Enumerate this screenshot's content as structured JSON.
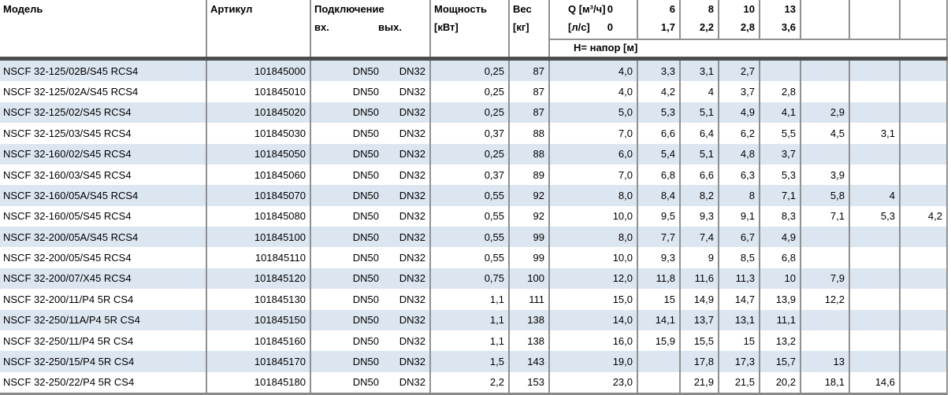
{
  "colors": {
    "shade": "#dce6f1",
    "grid": "#909090",
    "dark": "#4d4d4d",
    "bottom": "#8a8a8a"
  },
  "table": {
    "columns": {
      "model": "Модель",
      "article": "Артикул",
      "connection": "Подключение",
      "connection_in": "вх.",
      "connection_out": "вых.",
      "power_line1": "Мощность",
      "power_line2": "[кВт]",
      "weight_line1": "Вес",
      "weight_line2": "[кг]",
      "q_line1": "Q [м³/ч]",
      "q_line1_value": "0",
      "q_line2": "[л/с]",
      "q_line2_value": "0",
      "head_band": "H= напор [м]",
      "q_flows_m3h": [
        "6",
        "8",
        "10",
        "13",
        "",
        "",
        ""
      ],
      "q_flows_ls": [
        "1,7",
        "2,2",
        "2,8",
        "3,6",
        "",
        "",
        ""
      ]
    },
    "rows": [
      {
        "model": "NSCF 32-125/02B/S45 RCS4",
        "article": "101845000",
        "dn_in": "DN50",
        "dn_out": "DN32",
        "power": "0,25",
        "weight": "87",
        "h": [
          "4,0",
          "3,3",
          "3,1",
          "2,7",
          "",
          "",
          "",
          ""
        ]
      },
      {
        "model": "NSCF 32-125/02A/S45 RCS4",
        "article": "101845010",
        "dn_in": "DN50",
        "dn_out": "DN32",
        "power": "0,25",
        "weight": "87",
        "h": [
          "4,0",
          "4,2",
          "4",
          "3,7",
          "2,8",
          "",
          "",
          ""
        ]
      },
      {
        "model": "NSCF 32-125/02/S45 RCS4",
        "article": "101845020",
        "dn_in": "DN50",
        "dn_out": "DN32",
        "power": "0,25",
        "weight": "87",
        "h": [
          "5,0",
          "5,3",
          "5,1",
          "4,9",
          "4,1",
          "2,9",
          "",
          ""
        ]
      },
      {
        "model": "NSCF 32-125/03/S45 RCS4",
        "article": "101845030",
        "dn_in": "DN50",
        "dn_out": "DN32",
        "power": "0,37",
        "weight": "88",
        "h": [
          "7,0",
          "6,6",
          "6,4",
          "6,2",
          "5,5",
          "4,5",
          "3,1",
          ""
        ]
      },
      {
        "model": "NSCF 32-160/02/S45 RCS4",
        "article": "101845050",
        "dn_in": "DN50",
        "dn_out": "DN32",
        "power": "0,25",
        "weight": "88",
        "h": [
          "6,0",
          "5,4",
          "5,1",
          "4,8",
          "3,7",
          "",
          "",
          ""
        ]
      },
      {
        "model": "NSCF 32-160/03/S45 RCS4",
        "article": "101845060",
        "dn_in": "DN50",
        "dn_out": "DN32",
        "power": "0,37",
        "weight": "89",
        "h": [
          "7,0",
          "6,8",
          "6,6",
          "6,3",
          "5,3",
          "3,9",
          "",
          ""
        ]
      },
      {
        "model": "NSCF 32-160/05A/S45 RCS4",
        "article": "101845070",
        "dn_in": "DN50",
        "dn_out": "DN32",
        "power": "0,55",
        "weight": "92",
        "h": [
          "8,0",
          "8,4",
          "8,2",
          "8",
          "7,1",
          "5,8",
          "4",
          ""
        ]
      },
      {
        "model": "NSCF 32-160/05/S45 RCS4",
        "article": "101845080",
        "dn_in": "DN50",
        "dn_out": "DN32",
        "power": "0,55",
        "weight": "92",
        "h": [
          "10,0",
          "9,5",
          "9,3",
          "9,1",
          "8,3",
          "7,1",
          "5,3",
          "4,2"
        ]
      },
      {
        "model": "NSCF 32-200/05A/S45 RCS4",
        "article": "101845100",
        "dn_in": "DN50",
        "dn_out": "DN32",
        "power": "0,55",
        "weight": "99",
        "h": [
          "8,0",
          "7,7",
          "7,4",
          "6,7",
          "4,9",
          "",
          "",
          ""
        ]
      },
      {
        "model": "NSCF 32-200/05/S45 RCS4",
        "article": "101845110",
        "dn_in": "DN50",
        "dn_out": "DN32",
        "power": "0,55",
        "weight": "99",
        "h": [
          "10,0",
          "9,3",
          "9",
          "8,5",
          "6,8",
          "",
          "",
          ""
        ]
      },
      {
        "model": "NSCF 32-200/07/X45 RCS4",
        "article": "101845120",
        "dn_in": "DN50",
        "dn_out": "DN32",
        "power": "0,75",
        "weight": "100",
        "h": [
          "12,0",
          "11,8",
          "11,6",
          "11,3",
          "10",
          "7,9",
          "",
          ""
        ]
      },
      {
        "model": "NSCF 32-200/11/P4 5R CS4",
        "article": "101845130",
        "dn_in": "DN50",
        "dn_out": "DN32",
        "power": "1,1",
        "weight": "111",
        "h": [
          "15,0",
          "15",
          "14,9",
          "14,7",
          "13,9",
          "12,2",
          "",
          ""
        ]
      },
      {
        "model": "NSCF 32-250/11A/P4 5R CS4",
        "article": "101845150",
        "dn_in": "DN50",
        "dn_out": "DN32",
        "power": "1,1",
        "weight": "138",
        "h": [
          "14,0",
          "14,1",
          "13,7",
          "13,1",
          "11,1",
          "",
          "",
          ""
        ]
      },
      {
        "model": "NSCF 32-250/11/P4 5R CS4",
        "article": "101845160",
        "dn_in": "DN50",
        "dn_out": "DN32",
        "power": "1,1",
        "weight": "138",
        "h": [
          "16,0",
          "15,9",
          "15,5",
          "15",
          "13,2",
          "",
          "",
          ""
        ]
      },
      {
        "model": "NSCF 32-250/15/P4 5R CS4",
        "article": "101845170",
        "dn_in": "DN50",
        "dn_out": "DN32",
        "power": "1,5",
        "weight": "143",
        "h": [
          "19,0",
          "",
          "17,8",
          "17,3",
          "15,7",
          "13",
          "",
          ""
        ]
      },
      {
        "model": "NSCF 32-250/22/P4 5R CS4",
        "article": "101845180",
        "dn_in": "DN50",
        "dn_out": "DN32",
        "power": "2,2",
        "weight": "153",
        "h": [
          "23,0",
          "",
          "21,9",
          "21,5",
          "20,2",
          "18,1",
          "14,6",
          ""
        ]
      }
    ]
  }
}
